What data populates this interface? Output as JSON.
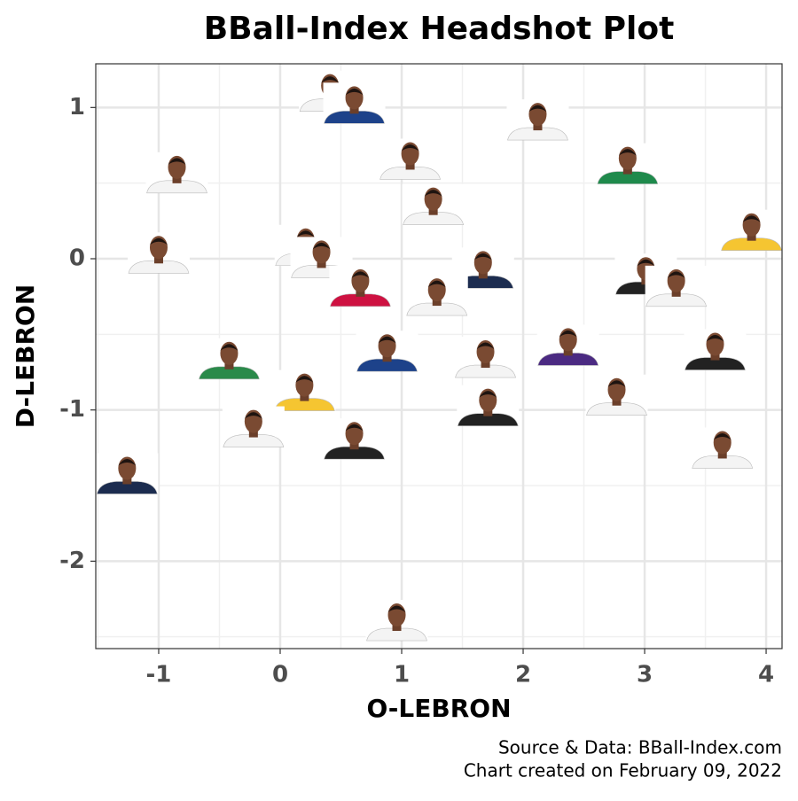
{
  "chart_data": {
    "type": "scatter",
    "title": "BBall-Index Headshot Plot",
    "x_label": "O-LEBRON",
    "y_label": "D-LEBRON",
    "caption": [
      "Source & Data: BBall-Index.com",
      "Chart created on February 09, 2022"
    ],
    "x": [
      0.41,
      0.61,
      2.12,
      -0.85,
      1.07,
      2.86,
      1.26,
      3.88,
      -1.0,
      0.21,
      0.34,
      1.67,
      0.66,
      3.01,
      3.26,
      1.29,
      -0.42,
      0.88,
      1.69,
      2.37,
      3.58,
      0.2,
      2.77,
      1.71,
      -0.22,
      0.61,
      3.64,
      -1.26,
      0.96
    ],
    "y": [
      1.08,
      1.0,
      0.89,
      0.54,
      0.63,
      0.6,
      0.33,
      0.16,
      0.01,
      0.06,
      -0.02,
      -0.09,
      -0.21,
      -0.13,
      -0.21,
      -0.27,
      -0.69,
      -0.64,
      -0.68,
      -0.6,
      -0.63,
      -0.9,
      -0.93,
      -1.0,
      -1.14,
      -1.22,
      -1.28,
      -1.45,
      -2.42
    ],
    "colors": [
      "#f4f4f4",
      "#1d428a",
      "#f4f4f4",
      "#f4f4f4",
      "#f4f4f4",
      "#1f8a4c",
      "#f4f4f4",
      "#f5c531",
      "#f4f4f4",
      "#f4f4f4",
      "#f4f4f4",
      "#1c2c4f",
      "#ce1141",
      "#222222",
      "#f4f4f4",
      "#f4f4f4",
      "#2a8a4a",
      "#1d428a",
      "#f4f4f4",
      "#4b2a82",
      "#222222",
      "#f5c531",
      "#f4f4f4",
      "#222222",
      "#f4f4f4",
      "#222222",
      "#f4f4f4",
      "#1c2c4f",
      "#f4f4f4"
    ],
    "xlim": [
      -1.518,
      4.131
    ],
    "ylim": [
      -2.578,
      1.289
    ],
    "xticks": [
      -1,
      0,
      1,
      2,
      3,
      4
    ],
    "yticks": [
      1,
      0,
      -1,
      -2
    ],
    "x_minor_ticks": [
      -1.5,
      -0.5,
      0.5,
      1.5,
      2.5,
      3.5
    ],
    "y_minor_ticks": [
      0.5,
      -0.5,
      -1.5,
      -2.5
    ],
    "grid": true
  }
}
